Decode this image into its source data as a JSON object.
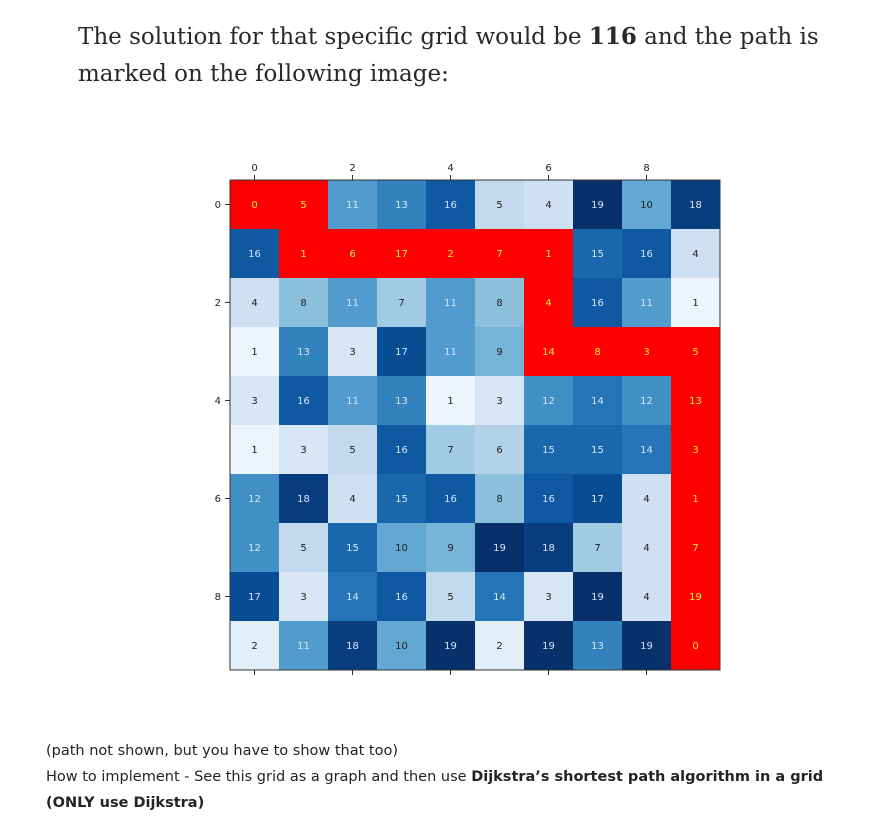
{
  "intro": {
    "before": "The solution for that specific grid would be ",
    "answer": "116",
    "after": " and the path is marked on the following image:"
  },
  "chart_data": {
    "type": "heatmap",
    "colormap": "Blues",
    "path_color": "#ff0000",
    "x_ticks": [
      0,
      2,
      4,
      6,
      8
    ],
    "y_ticks": [
      0,
      2,
      4,
      6,
      8
    ],
    "grid": [
      [
        0,
        5,
        11,
        13,
        16,
        5,
        4,
        19,
        10,
        18
      ],
      [
        16,
        1,
        6,
        17,
        2,
        7,
        1,
        15,
        16,
        4
      ],
      [
        4,
        8,
        11,
        7,
        11,
        8,
        4,
        16,
        11,
        1
      ],
      [
        1,
        13,
        3,
        17,
        11,
        9,
        14,
        8,
        3,
        5
      ],
      [
        3,
        16,
        11,
        13,
        1,
        3,
        12,
        14,
        12,
        13
      ],
      [
        1,
        3,
        5,
        16,
        7,
        6,
        15,
        15,
        14,
        3
      ],
      [
        12,
        18,
        4,
        15,
        16,
        8,
        16,
        17,
        4,
        1
      ],
      [
        12,
        5,
        15,
        10,
        9,
        19,
        18,
        7,
        4,
        7
      ],
      [
        17,
        3,
        14,
        16,
        5,
        14,
        3,
        19,
        4,
        19
      ],
      [
        2,
        11,
        18,
        10,
        19,
        2,
        19,
        13,
        19,
        0
      ]
    ],
    "path": [
      [
        0,
        0
      ],
      [
        0,
        1
      ],
      [
        1,
        1
      ],
      [
        1,
        2
      ],
      [
        1,
        3
      ],
      [
        1,
        4
      ],
      [
        1,
        5
      ],
      [
        1,
        6
      ],
      [
        2,
        6
      ],
      [
        3,
        6
      ],
      [
        3,
        7
      ],
      [
        3,
        8
      ],
      [
        3,
        9
      ],
      [
        4,
        9
      ],
      [
        5,
        9
      ],
      [
        6,
        9
      ],
      [
        7,
        9
      ],
      [
        8,
        9
      ],
      [
        9,
        9
      ]
    ]
  },
  "note": {
    "line1": "(path not shown, but you have to show that too)",
    "line2_before": "How to implement - See this grid as a graph and then use ",
    "line2_bold": "Dijkstra’s shortest path algorithm in a grid (ONLY use Dijkstra)"
  }
}
